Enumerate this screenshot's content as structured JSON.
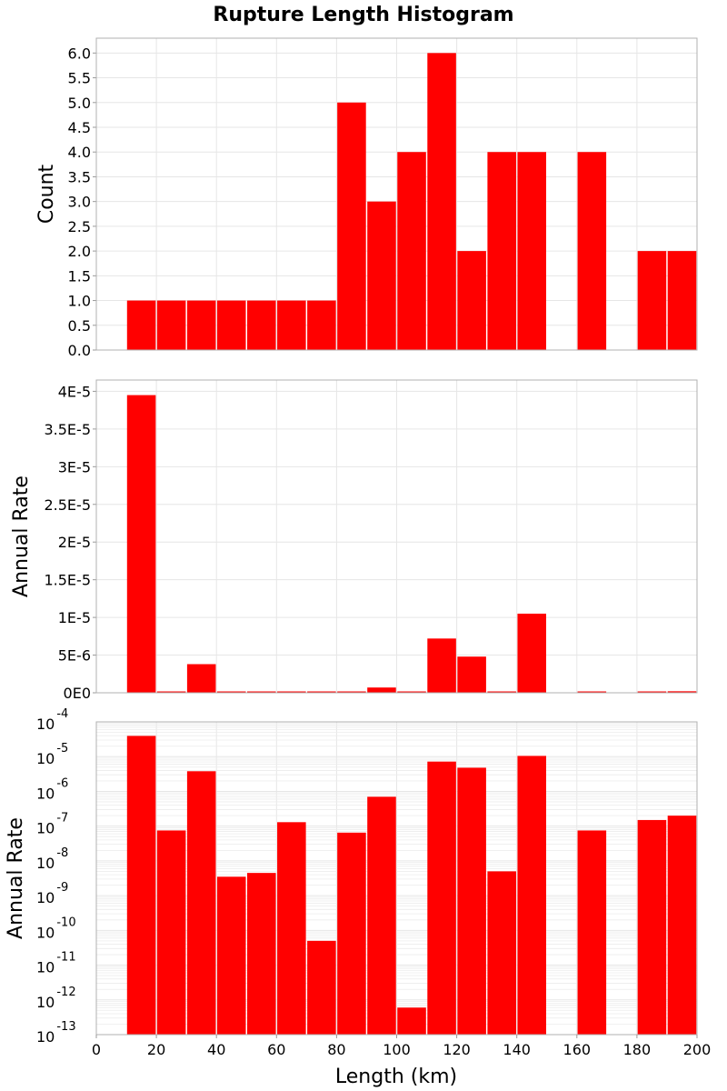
{
  "chart_data": {
    "title": "Rupture Length Histogram",
    "type": "bar",
    "x_axis": {
      "label": "Length (km)",
      "range": [
        0,
        200
      ],
      "tick_values": [
        0,
        20,
        40,
        60,
        80,
        100,
        120,
        140,
        160,
        180,
        200
      ],
      "tick_labels": [
        "0",
        "20",
        "40",
        "60",
        "80",
        "100",
        "120",
        "140",
        "160",
        "180",
        "200"
      ]
    },
    "bar_color": "#ff0000",
    "panels": [
      {
        "id": "count",
        "ylabel": "Count",
        "yscale": "linear",
        "ylim": [
          0,
          6.3
        ],
        "y_tick_values": [
          0,
          0.5,
          1,
          1.5,
          2,
          2.5,
          3,
          3.5,
          4,
          4.5,
          5,
          5.5,
          6
        ],
        "y_tick_labels": [
          "0.0",
          "0.5",
          "1.0",
          "1.5",
          "2.0",
          "2.5",
          "3.0",
          "3.5",
          "4.0",
          "4.5",
          "5.0",
          "5.5",
          "6.0"
        ],
        "bars": [
          {
            "x": 15,
            "value": 1
          },
          {
            "x": 25,
            "value": 1
          },
          {
            "x": 35,
            "value": 1
          },
          {
            "x": 45,
            "value": 1
          },
          {
            "x": 55,
            "value": 1
          },
          {
            "x": 65,
            "value": 1
          },
          {
            "x": 75,
            "value": 1
          },
          {
            "x": 85,
            "value": 5
          },
          {
            "x": 95,
            "value": 3
          },
          {
            "x": 105,
            "value": 4
          },
          {
            "x": 115,
            "value": 6
          },
          {
            "x": 125,
            "value": 2
          },
          {
            "x": 135,
            "value": 4
          },
          {
            "x": 145,
            "value": 4
          },
          {
            "x": 165,
            "value": 4
          },
          {
            "x": 185,
            "value": 2
          },
          {
            "x": 195,
            "value": 2
          }
        ]
      },
      {
        "id": "rate-linear",
        "ylabel": "Annual Rate",
        "yscale": "linear",
        "ylim": [
          0,
          4.15e-05
        ],
        "y_tick_values": [
          0,
          5e-06,
          1e-05,
          1.5e-05,
          2e-05,
          2.5e-05,
          3e-05,
          3.5e-05,
          4e-05
        ],
        "y_tick_labels": [
          "0E0",
          "5E-6",
          "1E-5",
          "1.5E-5",
          "2E-5",
          "2.5E-5",
          "3E-5",
          "3.5E-5",
          "4E-5"
        ],
        "bars": [
          {
            "x": 15,
            "value": 3.95e-05
          },
          {
            "x": 25,
            "value": 7.5e-08
          },
          {
            "x": 35,
            "value": 3.8e-06
          },
          {
            "x": 45,
            "value": 3.5e-09
          },
          {
            "x": 55,
            "value": 4.5e-09
          },
          {
            "x": 65,
            "value": 1.3e-07
          },
          {
            "x": 75,
            "value": 5e-11
          },
          {
            "x": 85,
            "value": 6.5e-08
          },
          {
            "x": 95,
            "value": 7e-07
          },
          {
            "x": 105,
            "value": 6e-13
          },
          {
            "x": 115,
            "value": 7.2e-06
          },
          {
            "x": 125,
            "value": 4.8e-06
          },
          {
            "x": 135,
            "value": 5e-09
          },
          {
            "x": 145,
            "value": 1.05e-05
          },
          {
            "x": 165,
            "value": 7.5e-08
          },
          {
            "x": 185,
            "value": 1.5e-07
          },
          {
            "x": 195,
            "value": 2e-07
          }
        ]
      },
      {
        "id": "rate-log",
        "ylabel": "Annual Rate",
        "yscale": "log",
        "ylim_exponents": [
          -13,
          -4
        ],
        "y_tick_exponents": [
          "-13",
          "-12",
          "-11",
          "-10",
          "-9",
          "-8",
          "-7",
          "-6",
          "-5",
          "-4"
        ],
        "y_tick_base": "10",
        "bars": [
          {
            "x": 15,
            "value": 3.95e-05
          },
          {
            "x": 25,
            "value": 7.5e-08
          },
          {
            "x": 35,
            "value": 3.8e-06
          },
          {
            "x": 45,
            "value": 3.5e-09
          },
          {
            "x": 55,
            "value": 4.5e-09
          },
          {
            "x": 65,
            "value": 1.3e-07
          },
          {
            "x": 75,
            "value": 5e-11
          },
          {
            "x": 85,
            "value": 6.5e-08
          },
          {
            "x": 95,
            "value": 7e-07
          },
          {
            "x": 105,
            "value": 6e-13
          },
          {
            "x": 115,
            "value": 7.2e-06
          },
          {
            "x": 125,
            "value": 4.8e-06
          },
          {
            "x": 135,
            "value": 5e-09
          },
          {
            "x": 145,
            "value": 1.05e-05
          },
          {
            "x": 165,
            "value": 7.5e-08
          },
          {
            "x": 185,
            "value": 1.5e-07
          },
          {
            "x": 195,
            "value": 2e-07
          }
        ]
      }
    ]
  }
}
